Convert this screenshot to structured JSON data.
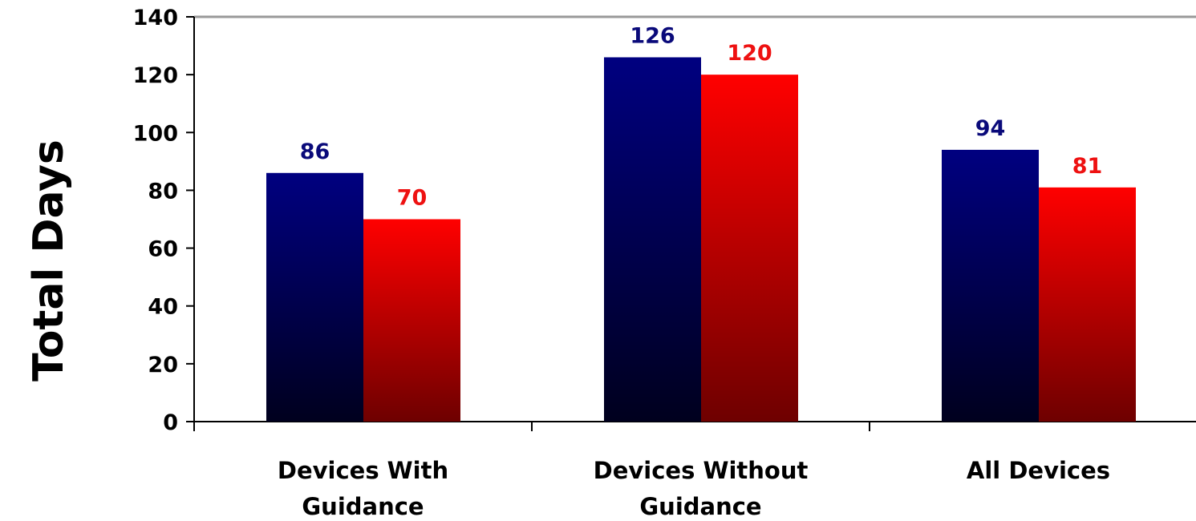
{
  "chart_data": {
    "type": "bar",
    "title": "",
    "xlabel": "",
    "ylabel": "Total Days",
    "ylim": [
      0,
      140
    ],
    "yticks": [
      0,
      20,
      40,
      60,
      80,
      100,
      120,
      140
    ],
    "categories": [
      [
        "Devices With",
        "Guidance"
      ],
      [
        "Devices Without",
        "Guidance"
      ],
      [
        "All Devices"
      ]
    ],
    "series": [
      {
        "values": [
          86,
          126,
          94
        ],
        "color": "#000080",
        "label_color": "#0a0a7a"
      },
      {
        "values": [
          70,
          120,
          81
        ],
        "color": "#ff0000",
        "label_color": "#ee1111"
      }
    ],
    "grid": false,
    "legend": "none"
  }
}
